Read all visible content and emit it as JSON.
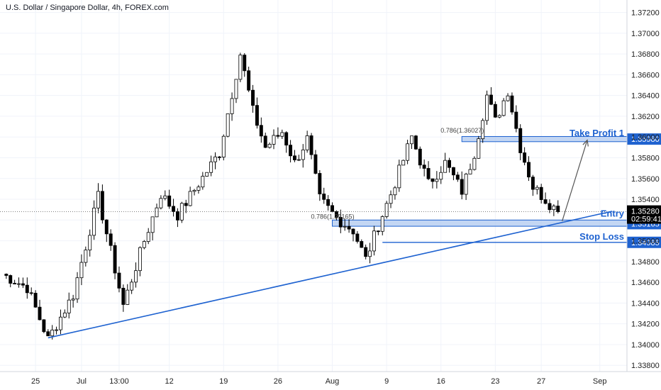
{
  "chart_title": "U.S. Dollar / Singapore Dollar, 4h, FOREX.com",
  "colors": {
    "candle": "#000000",
    "accent": "#1e62d0",
    "zone_fill": "#a9c4ee",
    "current_tag": "#000000",
    "grid": "#f0f3fa"
  },
  "chart_data": {
    "type": "candlestick",
    "title": "U.S. Dollar / Singapore Dollar, 4h, FOREX.com",
    "symbol": "USDSGD",
    "timeframe": "4h",
    "source": "FOREX.com",
    "ylim": [
      1.3374,
      1.3732
    ],
    "y_ticks": [
      1.338,
      1.34,
      1.342,
      1.344,
      1.346,
      1.348,
      1.35,
      1.352,
      1.354,
      1.356,
      1.358,
      1.36,
      1.362,
      1.364,
      1.366,
      1.368,
      1.37,
      1.372
    ],
    "y_tick_labels": [
      "1.33800",
      "1.34000",
      "1.34200",
      "1.34400",
      "1.34600",
      "1.34800",
      "1.35000",
      "1.35200",
      "1.35400",
      "1.35600",
      "1.35800",
      "1.36000",
      "1.36200",
      "1.36400",
      "1.36600",
      "1.36800",
      "1.37000",
      "1.37200"
    ],
    "x_tick_labels": [
      "25",
      "Jul",
      "13:00",
      "12",
      "19",
      "26",
      "Aug",
      "9",
      "16",
      "23",
      "27",
      "Sep"
    ],
    "x_tick_bars": [
      8,
      19,
      28,
      40,
      53,
      66,
      79,
      92,
      105,
      118,
      129,
      143
    ],
    "bars_visible": 150,
    "key_points": [
      {
        "bar": 0,
        "price": 1.3468
      },
      {
        "bar": 6,
        "price": 1.3455
      },
      {
        "bar": 11,
        "price": 1.3405
      },
      {
        "bar": 17,
        "price": 1.3448
      },
      {
        "bar": 23,
        "price": 1.3542
      },
      {
        "bar": 29,
        "price": 1.3438
      },
      {
        "bar": 34,
        "price": 1.35
      },
      {
        "bar": 38,
        "price": 1.3545
      },
      {
        "bar": 42,
        "price": 1.3525
      },
      {
        "bar": 47,
        "price": 1.3555
      },
      {
        "bar": 52,
        "price": 1.3585
      },
      {
        "bar": 57,
        "price": 1.368
      },
      {
        "bar": 60,
        "price": 1.3625
      },
      {
        "bar": 63,
        "price": 1.359
      },
      {
        "bar": 67,
        "price": 1.3605
      },
      {
        "bar": 70,
        "price": 1.3575
      },
      {
        "bar": 73,
        "price": 1.3598
      },
      {
        "bar": 76,
        "price": 1.354
      },
      {
        "bar": 80,
        "price": 1.3522
      },
      {
        "bar": 84,
        "price": 1.351
      },
      {
        "bar": 87,
        "price": 1.3482
      },
      {
        "bar": 90,
        "price": 1.3515
      },
      {
        "bar": 93,
        "price": 1.3545
      },
      {
        "bar": 98,
        "price": 1.36
      },
      {
        "bar": 102,
        "price": 1.3555
      },
      {
        "bar": 106,
        "price": 1.3575
      },
      {
        "bar": 110,
        "price": 1.3548
      },
      {
        "bar": 113,
        "price": 1.3585
      },
      {
        "bar": 116,
        "price": 1.364
      },
      {
        "bar": 118,
        "price": 1.3615
      },
      {
        "bar": 121,
        "price": 1.3645
      },
      {
        "bar": 124,
        "price": 1.359
      },
      {
        "bar": 127,
        "price": 1.3552
      },
      {
        "bar": 130,
        "price": 1.354
      },
      {
        "bar": 133,
        "price": 1.3528
      }
    ],
    "current_price": 1.3528,
    "countdown": "02:59:41",
    "levels": [
      {
        "name": "Take Profit 1",
        "price": 1.3598,
        "tag": "1.35980",
        "zone": [
          1.35955,
          1.36005
        ],
        "label_align": "right"
      },
      {
        "name": "Entry",
        "price": 1.35165,
        "tag": "1.35165",
        "zone": [
          1.3514,
          1.352
        ],
        "label_align": "right"
      },
      {
        "name": "Stop Loss",
        "price": 1.34985,
        "tag": "1.34985",
        "zone": null,
        "label_align": "right"
      }
    ],
    "fib_labels": [
      {
        "text": "0.786(1.36027)",
        "price": 1.3603,
        "bar": 110
      },
      {
        "text": "0.786(1.35165)",
        "price": 1.352,
        "bar": 79
      }
    ],
    "trendline": {
      "from": {
        "bar": 11,
        "price": 1.34065
      },
      "to": {
        "bar": 146,
        "price": 1.35285
      }
    },
    "arrow": {
      "from": {
        "bar": 134,
        "price": 1.3519
      },
      "to": {
        "bar": 140,
        "price": 1.3597
      }
    }
  }
}
